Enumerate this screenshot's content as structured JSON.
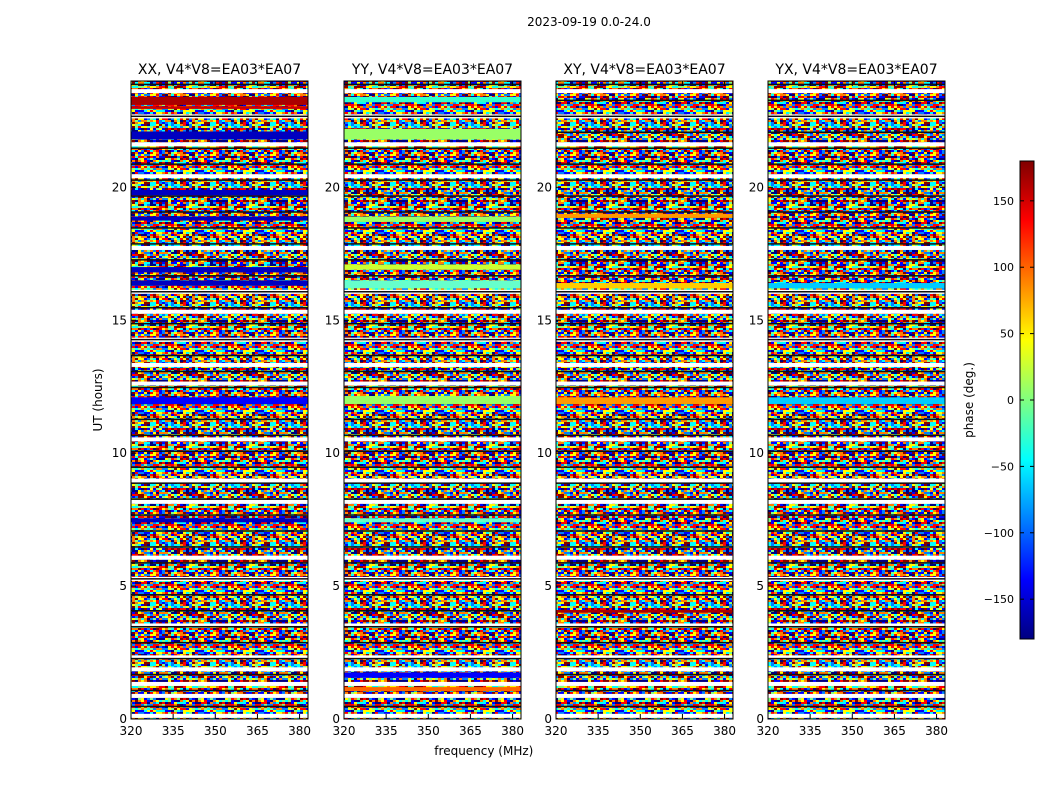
{
  "figure_title": "2023-09-19 0.0-24.0",
  "chart_data": [
    {
      "type": "heatmap",
      "title": "XX, V4*V8=EA03*EA07",
      "xlabel": "",
      "ylabel": "UT (hours)",
      "xlim": [
        320,
        383
      ],
      "ylim": [
        0,
        24
      ],
      "xticks": [
        320,
        335,
        350,
        365,
        380
      ],
      "yticks": [
        0,
        5,
        10,
        15,
        20
      ],
      "value": "phase (deg.)",
      "solid_bands": [
        {
          "y0": 23.1,
          "y1": 23.4,
          "color": "#aa0000"
        },
        {
          "y0": 22.95,
          "y1": 23.05,
          "color": "#cc0000"
        },
        {
          "y0": 21.8,
          "y1": 22.1,
          "color": "#0000c0"
        },
        {
          "y0": 19.7,
          "y1": 19.9,
          "color": "#0000c0"
        },
        {
          "y0": 18.75,
          "y1": 18.9,
          "color": "#0000c0"
        },
        {
          "y0": 16.8,
          "y1": 17.0,
          "color": "#0000c0"
        },
        {
          "y0": 16.3,
          "y1": 16.5,
          "color": "#0000c0"
        },
        {
          "y0": 11.85,
          "y1": 12.1,
          "color": "#0000ff"
        },
        {
          "y0": 7.4,
          "y1": 7.55,
          "color": "#0000c0"
        }
      ]
    },
    {
      "type": "heatmap",
      "title": "YY, V4*V8=EA03*EA07",
      "xlabel": "frequency (MHz)",
      "ylabel": "",
      "xlim": [
        320,
        383
      ],
      "ylim": [
        0,
        24
      ],
      "xticks": [
        320,
        335,
        350,
        365,
        380
      ],
      "yticks": [
        0,
        5,
        10,
        15,
        20
      ],
      "value": "phase (deg.)",
      "solid_bands": [
        {
          "y0": 23.2,
          "y1": 23.4,
          "color": "#33ffcc"
        },
        {
          "y0": 21.8,
          "y1": 22.2,
          "color": "#99ff66"
        },
        {
          "y0": 18.7,
          "y1": 18.9,
          "color": "#99ff66"
        },
        {
          "y0": 16.2,
          "y1": 16.5,
          "color": "#66ffcc"
        },
        {
          "y0": 16.9,
          "y1": 17.1,
          "color": "#ccff33"
        },
        {
          "y0": 11.85,
          "y1": 12.15,
          "color": "#99ff66"
        },
        {
          "y0": 7.4,
          "y1": 7.55,
          "color": "#66ffcc"
        },
        {
          "y0": 1.55,
          "y1": 1.75,
          "color": "#0000ff"
        },
        {
          "y0": 1.05,
          "y1": 1.2,
          "color": "#ff6600"
        }
      ]
    },
    {
      "type": "heatmap",
      "title": "XY, V4*V8=EA03*EA07",
      "xlabel": "",
      "ylabel": "",
      "xlim": [
        320,
        383
      ],
      "ylim": [
        0,
        24
      ],
      "xticks": [
        320,
        335,
        350,
        365,
        380
      ],
      "yticks": [
        0,
        5,
        10,
        15,
        20
      ],
      "value": "phase (deg.)",
      "solid_bands": [
        {
          "y0": 18.85,
          "y1": 19.0,
          "color": "#ff9900"
        },
        {
          "y0": 16.2,
          "y1": 16.4,
          "color": "#ffcc00"
        },
        {
          "y0": 11.85,
          "y1": 12.1,
          "color": "#ff9900"
        },
        {
          "y0": 4.0,
          "y1": 4.1,
          "color": "#aa0000"
        }
      ]
    },
    {
      "type": "heatmap",
      "title": "YX, V4*V8=EA03*EA07",
      "xlabel": "",
      "ylabel": "",
      "xlim": [
        320,
        383
      ],
      "ylim": [
        0,
        24
      ],
      "xticks": [
        320,
        335,
        350,
        365,
        380
      ],
      "yticks": [
        0,
        5,
        10,
        15,
        20
      ],
      "value": "phase (deg.)",
      "solid_bands": [
        {
          "y0": 16.2,
          "y1": 16.4,
          "color": "#00ccff"
        },
        {
          "y0": 11.85,
          "y1": 12.1,
          "color": "#00ccff"
        }
      ]
    }
  ],
  "colorbar": {
    "label": "phase (deg.)",
    "range": [
      -180,
      180
    ],
    "ticks": [
      150,
      100,
      50,
      0,
      -50,
      -100,
      -150
    ],
    "tick_labels": [
      "150",
      "100",
      "50",
      "0",
      "−50",
      "−100",
      "−150"
    ],
    "colormap": [
      "#000080",
      "#0000ff",
      "#0080ff",
      "#00ffff",
      "#80ff80",
      "#ffff00",
      "#ff8000",
      "#ff0000",
      "#800000"
    ]
  },
  "white_gaps_hours": [
    0.1,
    0.85,
    1.3,
    1.85,
    2.3,
    3.5,
    5.25,
    6.05,
    8.15,
    8.95,
    10.5,
    12.6,
    13.3,
    14.25,
    15.3,
    16.05,
    17.7,
    20.4,
    21.6,
    22.65,
    23.6
  ]
}
